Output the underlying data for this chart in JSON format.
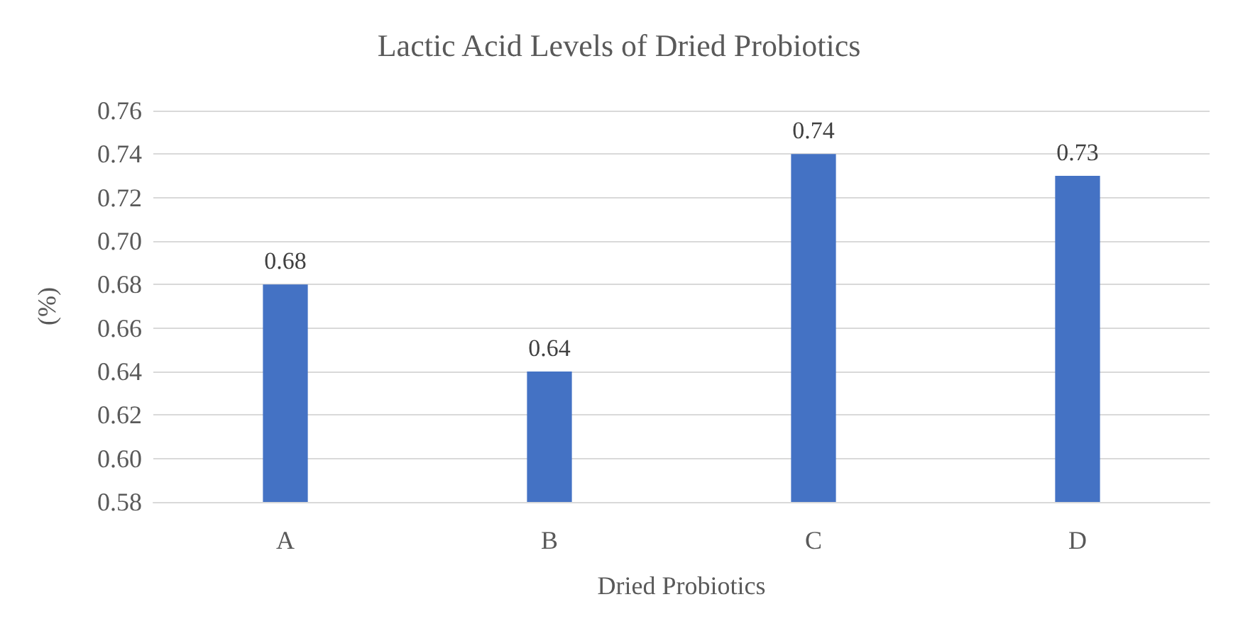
{
  "chart_data": {
    "type": "bar",
    "title": "Lactic Acid Levels of Dried Probiotics",
    "xlabel": "Dried Probiotics",
    "ylabel": "(%)",
    "categories": [
      "A",
      "B",
      "C",
      "D"
    ],
    "values": [
      0.68,
      0.64,
      0.74,
      0.73
    ],
    "color": "#4472c4",
    "data_labels": true,
    "ylim": [
      0.58,
      0.76
    ],
    "yticks": [
      {
        "value": 0.58,
        "label": "0.58"
      },
      {
        "value": 0.6,
        "label": "0.60"
      },
      {
        "value": 0.62,
        "label": "0.62"
      },
      {
        "value": 0.64,
        "label": "0.64"
      },
      {
        "value": 0.66,
        "label": "0.66"
      },
      {
        "value": 0.68,
        "label": "0.68"
      },
      {
        "value": 0.7,
        "label": "0.70"
      },
      {
        "value": 0.72,
        "label": "0.72"
      },
      {
        "value": 0.74,
        "label": "0.74"
      },
      {
        "value": 0.76,
        "label": "0.76"
      }
    ],
    "grid": "y"
  }
}
